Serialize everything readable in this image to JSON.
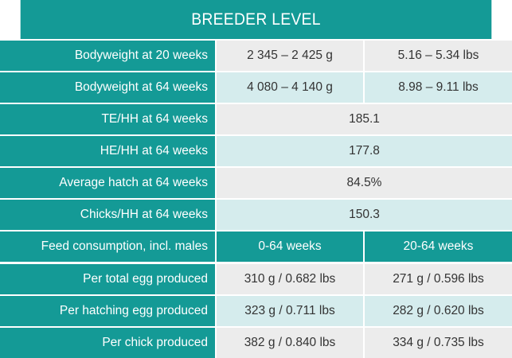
{
  "table": {
    "title": "BREEDER LEVEL",
    "rows": [
      {
        "label": "Bodyweight at 20 weeks",
        "values": [
          "2 345 – 2 425 g",
          "5.16 – 5.34 lbs"
        ]
      },
      {
        "label": "Bodyweight at 64 weeks",
        "values": [
          "4 080 – 4 140 g",
          "8.98 – 9.11 lbs"
        ]
      },
      {
        "label": "TE/HH at 64 weeks",
        "values": [
          "185.1"
        ]
      },
      {
        "label": "HE/HH at 64 weeks",
        "values": [
          "177.8"
        ]
      },
      {
        "label": "Average hatch at 64 weeks",
        "values": [
          "84.5%"
        ]
      },
      {
        "label": "Chicks/HH at 64 weeks",
        "values": [
          "150.3"
        ]
      },
      {
        "label": "Feed consumption, incl. males",
        "values": [
          "0-64 weeks",
          "20-64 weeks"
        ]
      },
      {
        "label": "Per total egg produced",
        "values": [
          "310 g / 0.682 lbs",
          "271 g / 0.596 lbs"
        ]
      },
      {
        "label": "Per hatching egg produced",
        "values": [
          "323 g / 0.711 lbs",
          "282 g / 0.620 lbs"
        ]
      },
      {
        "label": "Per chick produced",
        "values": [
          "382 g / 0.840 lbs",
          "334 g / 0.735 lbs"
        ]
      }
    ]
  },
  "colors": {
    "teal": "#149a96",
    "light_gray": "#ececec",
    "light_teal": "#d5eced"
  }
}
